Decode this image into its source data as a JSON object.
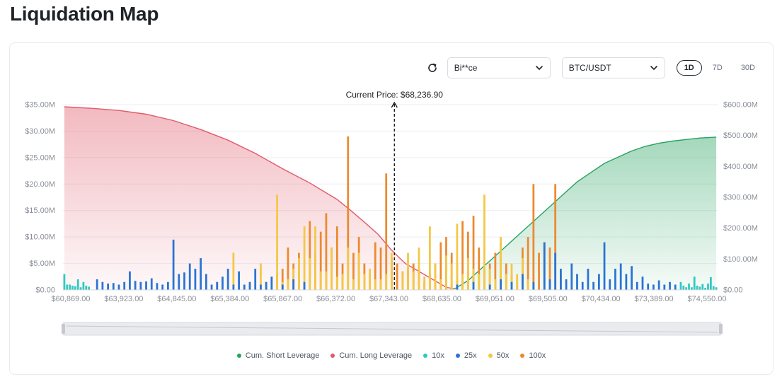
{
  "page": {
    "title": "Liquidation Map"
  },
  "toolbar": {
    "exchange_value": "Bi**ce",
    "pair_value": "BTC/USDT",
    "tabs": [
      {
        "label": "1D",
        "active": true
      },
      {
        "label": "7D",
        "active": false
      },
      {
        "label": "30D",
        "active": false
      }
    ]
  },
  "colors": {
    "short": "#27a25f",
    "long": "#e05a6a",
    "x10": "#30c9c1",
    "x25": "#2a74d4",
    "x50": "#f3c845",
    "x100": "#ec8a30"
  },
  "chart_data": {
    "type": "bar",
    "title": "",
    "annotation": "Current Price: $68,236.90",
    "current_price_index": 121,
    "left_axis": {
      "ylim": [
        0,
        35
      ],
      "ticks": [
        "$0.00",
        "$5.00M",
        "$10.00M",
        "$15.00M",
        "$20.00M",
        "$25.00M",
        "$30.00M",
        "$35.00M"
      ]
    },
    "right_axis": {
      "ylim": [
        0,
        600
      ],
      "ticks": [
        "$0.00",
        "$100.00M",
        "$200.00M",
        "$300.00M",
        "$400.00M",
        "$500.00M",
        "$600.00M"
      ]
    },
    "x_tick_labels": [
      "$60,869.00",
      "$63,923.00",
      "$64,845.00",
      "$65,384.00",
      "$65,867.00",
      "$66,372.00",
      "$67,343.00",
      "$68,635.00",
      "$69,051.00",
      "$69,505.00",
      "$70,434.00",
      "$73,389.00",
      "$74,550.00"
    ],
    "bar_count": 240,
    "bar_series": [
      {
        "name": "10x",
        "color_key": "x10",
        "bars": [
          [
            0,
            3
          ],
          [
            1,
            1
          ],
          [
            2,
            1
          ],
          [
            3,
            0.8
          ],
          [
            4,
            0.7
          ],
          [
            5,
            2
          ],
          [
            6,
            0.5
          ],
          [
            7,
            1.5
          ],
          [
            8,
            0.8
          ],
          [
            9,
            0.6
          ],
          [
            226,
            1.5
          ],
          [
            227,
            0.8
          ],
          [
            228,
            0.5
          ],
          [
            229,
            1.2
          ],
          [
            230,
            0.5
          ],
          [
            231,
            2.5
          ],
          [
            232,
            0.8
          ],
          [
            233,
            0.6
          ],
          [
            234,
            1.1
          ],
          [
            235,
            0.4
          ],
          [
            236,
            1.2
          ],
          [
            237,
            2.4
          ],
          [
            238,
            0.7
          ],
          [
            239,
            0.5
          ]
        ]
      },
      {
        "name": "25x",
        "color_key": "x25",
        "bars": [
          [
            12,
            2
          ],
          [
            14,
            1.5
          ],
          [
            16,
            1.2
          ],
          [
            18,
            1.3
          ],
          [
            20,
            1
          ],
          [
            22,
            1.5
          ],
          [
            24,
            3.5
          ],
          [
            26,
            1.7
          ],
          [
            28,
            1.5
          ],
          [
            30,
            1.6
          ],
          [
            32,
            2.2
          ],
          [
            34,
            1.3
          ],
          [
            36,
            1
          ],
          [
            38,
            1.5
          ],
          [
            40,
            9.5
          ],
          [
            42,
            3
          ],
          [
            44,
            3.3
          ],
          [
            46,
            5
          ],
          [
            48,
            4
          ],
          [
            50,
            6
          ],
          [
            52,
            3
          ],
          [
            54,
            1
          ],
          [
            56,
            1.5
          ],
          [
            58,
            2.5
          ],
          [
            60,
            4
          ],
          [
            62,
            1
          ],
          [
            64,
            3.5
          ],
          [
            66,
            1
          ],
          [
            68,
            1.5
          ],
          [
            70,
            4
          ],
          [
            72,
            1
          ],
          [
            74,
            1.5
          ],
          [
            76,
            2.5
          ],
          [
            80,
            1
          ],
          [
            84,
            2
          ],
          [
            88,
            1.5
          ],
          [
            144,
            1
          ],
          [
            150,
            1.5
          ],
          [
            156,
            1
          ],
          [
            160,
            2
          ],
          [
            164,
            1.5
          ],
          [
            168,
            3
          ],
          [
            172,
            1.5
          ],
          [
            176,
            9
          ],
          [
            178,
            2
          ],
          [
            180,
            7
          ],
          [
            182,
            4
          ],
          [
            184,
            2
          ],
          [
            186,
            5
          ],
          [
            188,
            3
          ],
          [
            190,
            1.5
          ],
          [
            192,
            4
          ],
          [
            194,
            1.5
          ],
          [
            196,
            3
          ],
          [
            198,
            9
          ],
          [
            200,
            2
          ],
          [
            202,
            4
          ],
          [
            204,
            5
          ],
          [
            206,
            3
          ],
          [
            208,
            4.5
          ],
          [
            210,
            1.5
          ],
          [
            212,
            2.5
          ],
          [
            214,
            1.2
          ],
          [
            216,
            1
          ],
          [
            218,
            1.8
          ],
          [
            220,
            1
          ],
          [
            222,
            1.5
          ],
          [
            224,
            1
          ]
        ]
      },
      {
        "name": "50x",
        "color_key": "x50",
        "bars": [
          [
            56,
            1.5
          ],
          [
            62,
            7
          ],
          [
            68,
            1
          ],
          [
            72,
            5
          ],
          [
            74,
            1.5
          ],
          [
            76,
            2.5
          ],
          [
            78,
            18
          ],
          [
            80,
            1.5
          ],
          [
            82,
            2
          ],
          [
            84,
            4
          ],
          [
            86,
            6
          ],
          [
            88,
            12
          ],
          [
            90,
            6
          ],
          [
            92,
            12
          ],
          [
            94,
            3.5
          ],
          [
            96,
            3.5
          ],
          [
            98,
            8
          ],
          [
            100,
            2.5
          ],
          [
            102,
            3
          ],
          [
            104,
            8
          ],
          [
            106,
            2
          ],
          [
            108,
            7
          ],
          [
            110,
            3
          ],
          [
            112,
            4
          ],
          [
            114,
            2
          ],
          [
            116,
            2
          ],
          [
            118,
            3
          ],
          [
            120,
            7
          ],
          [
            124,
            3.5
          ],
          [
            126,
            7
          ],
          [
            128,
            3.5
          ],
          [
            130,
            8
          ],
          [
            132,
            2.5
          ],
          [
            134,
            12
          ],
          [
            136,
            5
          ],
          [
            138,
            2
          ],
          [
            140,
            6.5
          ],
          [
            142,
            5
          ],
          [
            144,
            12.5
          ],
          [
            146,
            3
          ],
          [
            148,
            6
          ],
          [
            150,
            4
          ],
          [
            152,
            3
          ],
          [
            154,
            18
          ],
          [
            156,
            4
          ],
          [
            158,
            2
          ],
          [
            160,
            10
          ],
          [
            162,
            3
          ],
          [
            164,
            5
          ],
          [
            166,
            3
          ],
          [
            168,
            6
          ],
          [
            170,
            2
          ]
        ]
      },
      {
        "name": "100x",
        "color_key": "x100",
        "bars": [
          [
            78,
            3
          ],
          [
            80,
            4
          ],
          [
            82,
            8
          ],
          [
            84,
            5
          ],
          [
            86,
            7
          ],
          [
            88,
            1.5
          ],
          [
            90,
            13
          ],
          [
            92,
            7
          ],
          [
            94,
            11
          ],
          [
            96,
            14.5
          ],
          [
            98,
            8
          ],
          [
            100,
            12
          ],
          [
            102,
            5
          ],
          [
            104,
            29
          ],
          [
            106,
            7
          ],
          [
            108,
            10
          ],
          [
            110,
            5
          ],
          [
            112,
            3
          ],
          [
            114,
            9
          ],
          [
            116,
            8
          ],
          [
            118,
            22
          ],
          [
            120,
            6
          ],
          [
            122,
            5
          ],
          [
            124,
            3.5
          ],
          [
            126,
            4
          ],
          [
            128,
            5
          ],
          [
            130,
            4
          ],
          [
            132,
            1.5
          ],
          [
            134,
            3
          ],
          [
            136,
            5
          ],
          [
            138,
            9
          ],
          [
            140,
            10
          ],
          [
            142,
            7
          ],
          [
            144,
            5
          ],
          [
            146,
            13
          ],
          [
            148,
            11
          ],
          [
            150,
            14
          ],
          [
            152,
            8
          ],
          [
            154,
            4
          ],
          [
            156,
            5
          ],
          [
            158,
            7
          ],
          [
            160,
            9
          ],
          [
            162,
            5
          ],
          [
            164,
            3
          ],
          [
            166,
            2
          ],
          [
            168,
            8
          ],
          [
            170,
            10
          ],
          [
            172,
            20
          ],
          [
            174,
            7
          ],
          [
            176,
            9
          ],
          [
            178,
            8
          ],
          [
            180,
            20
          ],
          [
            182,
            3
          ]
        ]
      }
    ],
    "cumulative_series": [
      {
        "name": "Cum. Long Leverage",
        "color_key": "long",
        "axis": "left",
        "points": [
          [
            0,
            34.6
          ],
          [
            10,
            34.3
          ],
          [
            20,
            33.9
          ],
          [
            30,
            33.2
          ],
          [
            40,
            32
          ],
          [
            50,
            30.3
          ],
          [
            60,
            28.3
          ],
          [
            70,
            25.8
          ],
          [
            80,
            22.9
          ],
          [
            90,
            20.2
          ],
          [
            100,
            17.1
          ],
          [
            105,
            15
          ],
          [
            110,
            12.8
          ],
          [
            115,
            10.5
          ],
          [
            120,
            7.5
          ],
          [
            125,
            5
          ],
          [
            130,
            3.5
          ],
          [
            135,
            2
          ],
          [
            140,
            0.5
          ],
          [
            143,
            0.2
          ]
        ]
      },
      {
        "name": "Cum. Short Leverage",
        "color_key": "short",
        "axis": "right",
        "points": [
          [
            143,
            3
          ],
          [
            148,
            30
          ],
          [
            153,
            70
          ],
          [
            158,
            110
          ],
          [
            163,
            150
          ],
          [
            168,
            190
          ],
          [
            173,
            230
          ],
          [
            178,
            270
          ],
          [
            183,
            310
          ],
          [
            188,
            350
          ],
          [
            193,
            380
          ],
          [
            198,
            410
          ],
          [
            203,
            430
          ],
          [
            208,
            450
          ],
          [
            213,
            465
          ],
          [
            218,
            475
          ],
          [
            223,
            482
          ],
          [
            228,
            487
          ],
          [
            233,
            492
          ],
          [
            239,
            495
          ]
        ]
      }
    ],
    "legend": [
      {
        "label": "Cum. Short Leverage",
        "color_key": "short"
      },
      {
        "label": "Cum. Long Leverage",
        "color_key": "long"
      },
      {
        "label": "10x",
        "color_key": "x10"
      },
      {
        "label": "25x",
        "color_key": "x25"
      },
      {
        "label": "50x",
        "color_key": "x50"
      },
      {
        "label": "100x",
        "color_key": "x100"
      }
    ],
    "legend_position": "bottom",
    "grid": true
  }
}
